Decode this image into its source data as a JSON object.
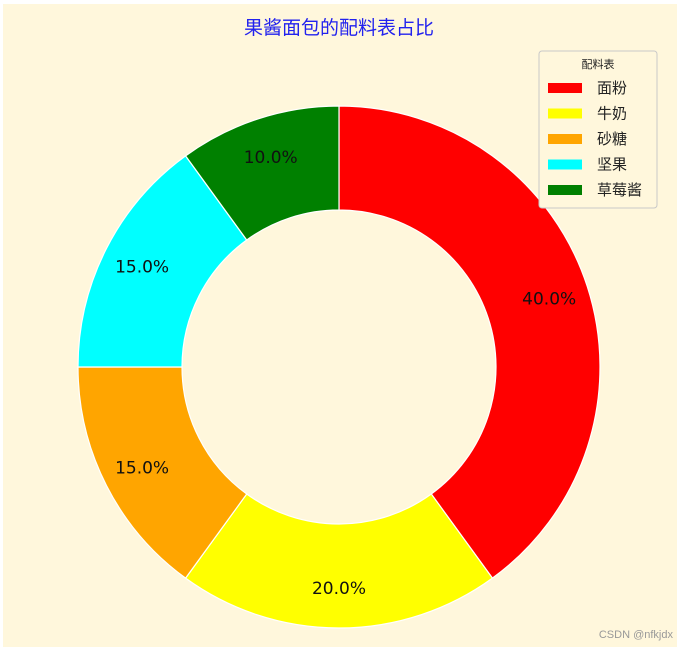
{
  "chart_data": {
    "type": "pie",
    "variant": "donut",
    "title": "果酱面包的配料表占比",
    "title_color": "#2222ee",
    "categories": [
      "面粉",
      "牛奶",
      "砂糖",
      "坚果",
      "草莓酱"
    ],
    "values": [
      40,
      20,
      15,
      15,
      10
    ],
    "data_labels": [
      "40.0%",
      "20.0%",
      "15.0%",
      "15.0%",
      "10.0%"
    ],
    "colors": [
      "#ff0000",
      "#ffff00",
      "#ffa500",
      "#00ffff",
      "#008000"
    ],
    "start_angle": 90,
    "direction": "clockwise",
    "legend": {
      "title": "配料表",
      "placement": "upper-right"
    },
    "background": "#fff7dc"
  },
  "watermark": "CSDN @nfkjdx"
}
